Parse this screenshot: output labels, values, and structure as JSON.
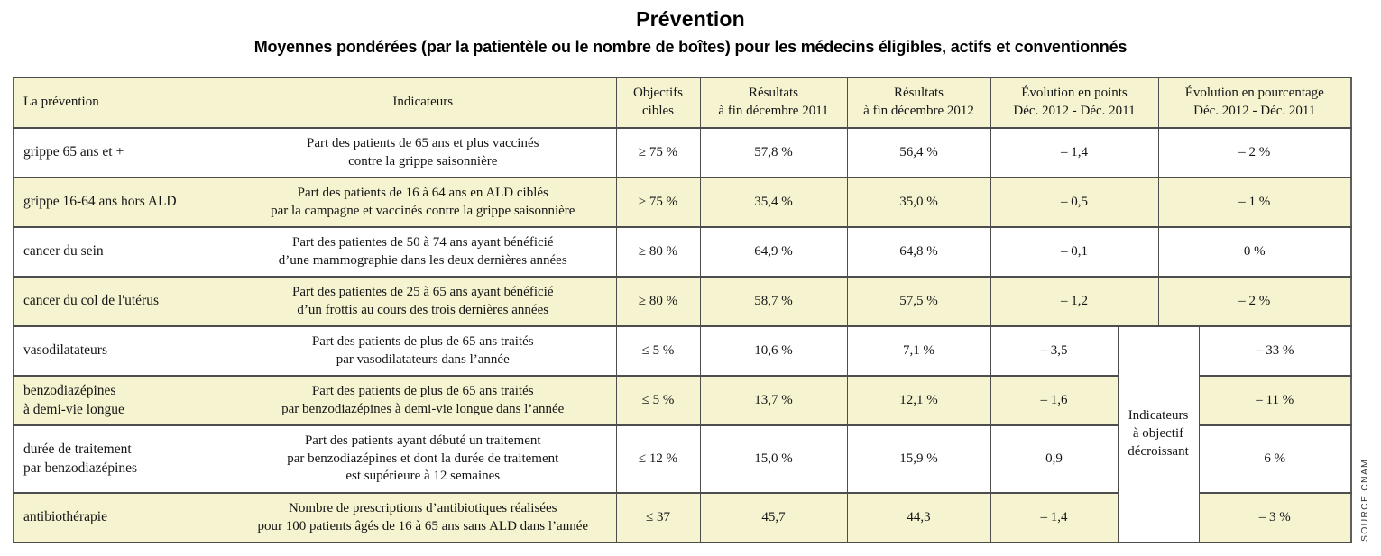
{
  "title": "Prévention",
  "subtitle": "Moyennes pondérées (par la patientèle ou le nombre de boîtes) pour les médecins éligibles, actifs et conventionnés",
  "source": "SOURCE CNAM",
  "colors": {
    "row_shade": "#f6f3d0",
    "border": "#4d4d4d",
    "border_outer": "#5f5f5f",
    "text": "#151515"
  },
  "table": {
    "headers": {
      "prevention": "La prévention",
      "indicateurs": "Indicateurs",
      "objectifs": "Objectifs\ncibles",
      "resultats_2011": "Résultats\nà fin décembre 2011",
      "resultats_2012": "Résultats\nà fin décembre 2012",
      "evolution_points": "Évolution en points\nDéc. 2012 - Déc. 2011",
      "evolution_pourcentage": "Évolution en pourcentage\nDéc. 2012 - Déc. 2011"
    },
    "decreasing_group_label": "Indicateurs\nà objectif\ndécroissant",
    "rows": [
      {
        "name": "grippe 65 ans et +",
        "indicator": "Part des patients de 65 ans et plus vaccinés\ncontre la grippe saisonnière",
        "objectif": "≥ 75 %",
        "res2011": "57,8 %",
        "res2012": "56,4 %",
        "points": "– 1,4",
        "pct": "– 2 %",
        "shaded": false
      },
      {
        "name": "grippe 16-64 ans hors ALD",
        "indicator": "Part des patients de 16 à 64 ans en ALD ciblés\npar la campagne et vaccinés contre la grippe saisonnière",
        "objectif": "≥ 75 %",
        "res2011": "35,4 %",
        "res2012": "35,0 %",
        "points": "– 0,5",
        "pct": "– 1 %",
        "shaded": true
      },
      {
        "name": "cancer du sein",
        "indicator": "Part des patientes de 50 à 74 ans ayant bénéficié\nd’une mammographie dans les deux dernières années",
        "objectif": "≥ 80 %",
        "res2011": "64,9 %",
        "res2012": "64,8 %",
        "points": "– 0,1",
        "pct": "0 %",
        "shaded": false
      },
      {
        "name": "cancer du col de l'utérus",
        "indicator": "Part des patientes de 25 à 65 ans ayant bénéficié\nd’un frottis au cours des trois dernières années",
        "objectif": "≥ 80  %",
        "res2011": "58,7 %",
        "res2012": "57,5 %",
        "points": "– 1,2",
        "pct": "– 2 %",
        "shaded": true
      },
      {
        "name": "vasodilatateurs",
        "indicator": "Part des patients de plus de 65 ans traités\npar vasodilatateurs dans l’année",
        "objectif": "≤ 5 %",
        "res2011": "10,6 %",
        "res2012": "7,1 %",
        "points": "– 3,5",
        "pct": "– 33 %",
        "shaded": false
      },
      {
        "name": "benzodiazépines\nà demi-vie longue",
        "indicator": "Part des patients de plus de 65 ans traités\npar benzodiazépines à demi-vie longue dans l’année",
        "objectif": "≤ 5 %",
        "res2011": "13,7 %",
        "res2012": "12,1 %",
        "points": "– 1,6",
        "pct": "– 11 %",
        "shaded": true
      },
      {
        "name": "durée de traitement\npar benzodiazépines",
        "indicator": "Part des patients ayant débuté un traitement\npar benzodiazépines et dont la durée de traitement\nest supérieure à 12 semaines",
        "objectif": "≤ 12 %",
        "res2011": "15,0 %",
        "res2012": "15,9 %",
        "points": "0,9",
        "pct": "6 %",
        "shaded": false
      },
      {
        "name": "antibiothérapie",
        "indicator": "Nombre de prescriptions d’antibiotiques réalisées\npour 100 patients âgés de 16 à 65 ans sans ALD dans l’année",
        "objectif": "≤ 37",
        "res2011": "45,7",
        "res2012": "44,3",
        "points": "– 1,4",
        "pct": "– 3 %",
        "shaded": true
      }
    ]
  }
}
